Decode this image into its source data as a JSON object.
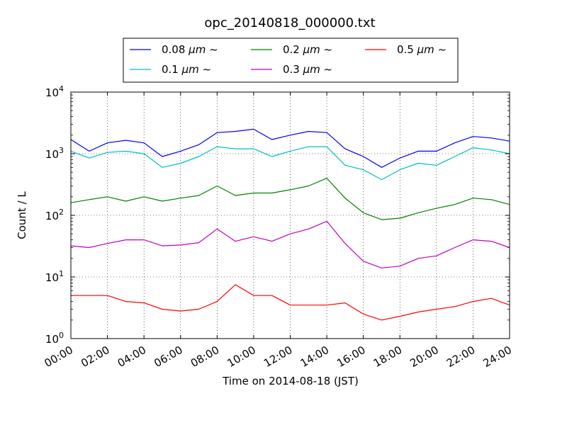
{
  "chart_data": {
    "type": "line",
    "title": "opc_20140818_000000.txt",
    "xlabel": "Time on 2014-08-18 (JST)",
    "ylabel": "Count / L",
    "x_ticks": [
      "00:00",
      "02:00",
      "04:00",
      "06:00",
      "08:00",
      "10:00",
      "12:00",
      "14:00",
      "16:00",
      "18:00",
      "20:00",
      "22:00",
      "24:00"
    ],
    "y_ticks": [
      {
        "value": 1,
        "base": "10",
        "exp": "0"
      },
      {
        "value": 10,
        "base": "10",
        "exp": "1"
      },
      {
        "value": 100,
        "base": "10",
        "exp": "2"
      },
      {
        "value": 1000,
        "base": "10",
        "exp": "3"
      },
      {
        "value": 10000,
        "base": "10",
        "exp": "4"
      }
    ],
    "y_scale": "log",
    "ylim": [
      1,
      10000
    ],
    "xlim_hours": [
      0,
      24
    ],
    "grid": true,
    "legend_position": "top-center",
    "hours": [
      0,
      1,
      2,
      3,
      4,
      5,
      6,
      7,
      8,
      9,
      10,
      11,
      12,
      13,
      14,
      15,
      16,
      17,
      18,
      19,
      20,
      21,
      22,
      23,
      24
    ],
    "series": [
      {
        "name": "0.08",
        "unit": "μm",
        "suffix": "~",
        "color": "#0000ff",
        "values": [
          1700,
          1100,
          1500,
          1650,
          1500,
          900,
          1100,
          1400,
          2200,
          2300,
          2500,
          1700,
          2000,
          2300,
          2200,
          1200,
          900,
          600,
          850,
          1100,
          1100,
          1500,
          1900,
          1800,
          1600
        ]
      },
      {
        "name": "0.1",
        "unit": "μm",
        "suffix": "~",
        "color": "#00bfbf",
        "values": [
          1100,
          850,
          1050,
          1100,
          1000,
          600,
          700,
          900,
          1300,
          1200,
          1200,
          900,
          1100,
          1300,
          1300,
          650,
          550,
          380,
          550,
          700,
          650,
          900,
          1250,
          1150,
          1000
        ]
      },
      {
        "name": "0.2",
        "unit": "μm",
        "suffix": "~",
        "color": "#008000",
        "values": [
          160,
          180,
          200,
          170,
          200,
          170,
          190,
          210,
          300,
          210,
          230,
          230,
          260,
          300,
          400,
          190,
          110,
          85,
          90,
          110,
          130,
          150,
          190,
          180,
          150
        ]
      },
      {
        "name": "0.3",
        "unit": "μm",
        "suffix": "~",
        "color": "#bf00bf",
        "values": [
          32,
          30,
          35,
          40,
          40,
          32,
          33,
          36,
          60,
          38,
          45,
          38,
          50,
          60,
          80,
          35,
          18,
          14,
          15,
          20,
          22,
          30,
          40,
          38,
          30
        ]
      },
      {
        "name": "0.5",
        "unit": "μm",
        "suffix": "~",
        "color": "#ff0000",
        "values": [
          5,
          5,
          5,
          4,
          3.8,
          3,
          2.8,
          3,
          4,
          7.5,
          5,
          5,
          3.5,
          3.5,
          3.5,
          3.8,
          2.5,
          2,
          2.3,
          2.7,
          3,
          3.3,
          4,
          4.5,
          3.5
        ]
      }
    ]
  }
}
